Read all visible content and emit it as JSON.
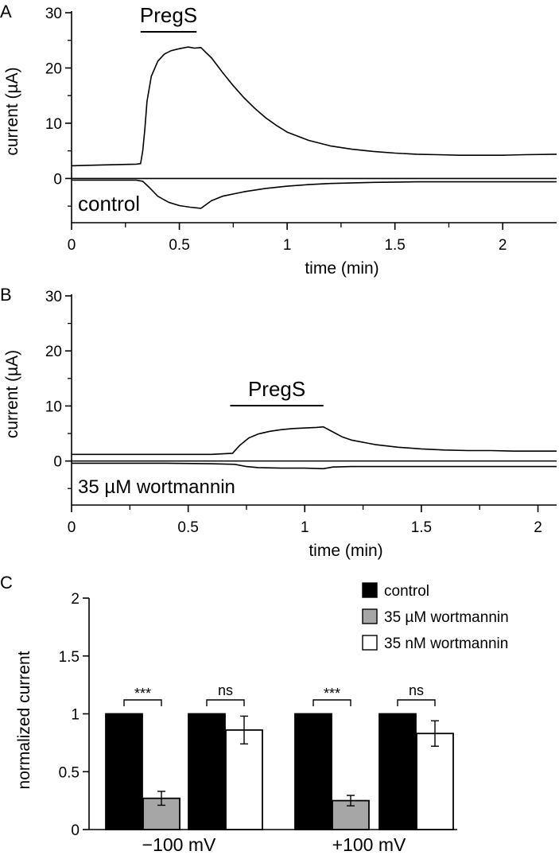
{
  "chart_data": [
    {
      "panel": "A",
      "type": "line",
      "xlabel": "time (min)",
      "ylabel": "current (µA)",
      "xlim": [
        0,
        2.25
      ],
      "ylim": [
        -8,
        30
      ],
      "xticks": [
        0,
        0.5,
        1,
        1.5,
        2
      ],
      "xtick_labels": [
        "0",
        "0.5",
        "1",
        "1.5",
        "2"
      ],
      "yticks": [
        0,
        10,
        20,
        30
      ],
      "ytick_labels": [
        "0",
        "10",
        "20",
        "30"
      ],
      "bar_label": "PregS",
      "bar_range": [
        0.32,
        0.58
      ],
      "condition_label": "control",
      "zero_line": 0,
      "series": [
        {
          "x": [
            0,
            0.1,
            0.2,
            0.3,
            0.32,
            0.33,
            0.34,
            0.35,
            0.37,
            0.4,
            0.43,
            0.46,
            0.5,
            0.54,
            0.57,
            0.6,
            0.65,
            0.7,
            0.75,
            0.8,
            0.85,
            0.9,
            0.95,
            1.0,
            1.1,
            1.2,
            1.3,
            1.4,
            1.5,
            1.6,
            1.7,
            1.8,
            1.9,
            2.0,
            2.1,
            2.25
          ],
          "y": [
            2.3,
            2.4,
            2.5,
            2.6,
            2.7,
            5.0,
            9.0,
            14.0,
            18.5,
            21.2,
            22.5,
            23.1,
            23.5,
            23.8,
            23.6,
            23.7,
            21.8,
            19.2,
            16.8,
            14.6,
            12.7,
            11.0,
            9.6,
            8.4,
            6.9,
            5.9,
            5.3,
            4.9,
            4.6,
            4.4,
            4.3,
            4.2,
            4.2,
            4.2,
            4.3,
            4.4
          ]
        },
        {
          "x": [
            0,
            0.1,
            0.2,
            0.3,
            0.33,
            0.36,
            0.4,
            0.45,
            0.5,
            0.55,
            0.6,
            0.65,
            0.7,
            0.8,
            0.9,
            1.0,
            1.1,
            1.2,
            1.4,
            1.6,
            1.8,
            2.0,
            2.25
          ],
          "y": [
            -0.3,
            -0.3,
            -0.3,
            -0.3,
            -0.5,
            -1.6,
            -3.2,
            -4.3,
            -4.9,
            -5.2,
            -5.4,
            -4.0,
            -3.2,
            -2.4,
            -1.8,
            -1.4,
            -1.1,
            -0.9,
            -0.7,
            -0.6,
            -0.6,
            -0.6,
            -0.6
          ]
        }
      ]
    },
    {
      "panel": "B",
      "type": "line",
      "xlabel": "time (min)",
      "ylabel": "current (µA)",
      "xlim": [
        0,
        2.08
      ],
      "ylim": [
        -8,
        30
      ],
      "xticks": [
        0,
        0.5,
        1,
        1.5,
        2
      ],
      "xtick_labels": [
        "0",
        "0.5",
        "1",
        "1.5",
        "2"
      ],
      "yticks": [
        0,
        10,
        20,
        30
      ],
      "ytick_labels": [
        "0",
        "10",
        "20",
        "30"
      ],
      "bar_label": "PregS",
      "bar_range": [
        0.68,
        1.08
      ],
      "condition_label": "35 µM wortmannin",
      "zero_line": 0,
      "series": [
        {
          "x": [
            0,
            0.2,
            0.4,
            0.6,
            0.69,
            0.72,
            0.76,
            0.8,
            0.85,
            0.9,
            0.95,
            1.0,
            1.05,
            1.08,
            1.12,
            1.16,
            1.2,
            1.3,
            1.4,
            1.5,
            1.6,
            1.7,
            1.8,
            1.9,
            2.0,
            2.08
          ],
          "y": [
            1.2,
            1.2,
            1.2,
            1.2,
            1.4,
            2.8,
            4.2,
            4.9,
            5.4,
            5.7,
            5.9,
            6.0,
            6.1,
            6.2,
            5.3,
            4.4,
            3.8,
            3.0,
            2.5,
            2.2,
            2.0,
            1.9,
            1.9,
            1.8,
            1.8,
            1.8
          ]
        },
        {
          "x": [
            0,
            0.2,
            0.4,
            0.6,
            0.7,
            0.75,
            0.8,
            0.9,
            1.0,
            1.08,
            1.12,
            1.2,
            1.4,
            1.6,
            1.8,
            2.0,
            2.08
          ],
          "y": [
            -0.4,
            -0.4,
            -0.4,
            -0.5,
            -0.6,
            -1.0,
            -1.2,
            -1.3,
            -1.3,
            -1.4,
            -1.1,
            -1.0,
            -1.0,
            -1.0,
            -1.0,
            -1.0,
            -1.0
          ]
        }
      ]
    },
    {
      "panel": "C",
      "type": "bar",
      "ylabel": "normalized current",
      "ylim": [
        0,
        2
      ],
      "yticks": [
        0,
        0.5,
        1,
        1.5,
        2
      ],
      "ytick_labels": [
        "0",
        "0.5",
        "1",
        "1.5",
        "2"
      ],
      "groups": [
        "−100 mV",
        "+100 mV"
      ],
      "legend": [
        {
          "name": "control",
          "color": "#000000"
        },
        {
          "name": "35 µM wortmannin",
          "color": "#a6a6a6"
        },
        {
          "name": "35 nM wortmannin",
          "color": "#ffffff"
        }
      ],
      "legend_position": "top-right",
      "bars": [
        {
          "group": "−100 mV",
          "series": "control",
          "value": 1.0,
          "error": 0
        },
        {
          "group": "−100 mV",
          "series": "35 µM wortmannin",
          "value": 0.27,
          "error": 0.06
        },
        {
          "group": "−100 mV",
          "series": "control",
          "value": 1.0,
          "error": 0
        },
        {
          "group": "−100 mV",
          "series": "35 nM wortmannin",
          "value": 0.86,
          "error": 0.12
        },
        {
          "group": "+100 mV",
          "series": "control",
          "value": 1.0,
          "error": 0
        },
        {
          "group": "+100 mV",
          "series": "35 µM wortmannin",
          "value": 0.25,
          "error": 0.045
        },
        {
          "group": "+100 mV",
          "series": "control",
          "value": 1.0,
          "error": 0
        },
        {
          "group": "+100 mV",
          "series": "35 nM wortmannin",
          "value": 0.83,
          "error": 0.11
        }
      ],
      "significance": [
        "***",
        "ns",
        "***",
        "ns"
      ]
    }
  ]
}
